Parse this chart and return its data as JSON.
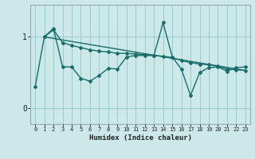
{
  "xlabel": "Humidex (Indice chaleur)",
  "bg_color": "#cce8e8",
  "line_color": "#1a6b6b",
  "grid_color": "#99cccc",
  "x_ticks": [
    0,
    1,
    2,
    3,
    4,
    5,
    6,
    7,
    8,
    9,
    10,
    11,
    12,
    13,
    14,
    15,
    16,
    17,
    18,
    19,
    20,
    21,
    22,
    23
  ],
  "y_ticks": [
    0,
    1
  ],
  "ylim": [
    -0.22,
    1.45
  ],
  "xlim": [
    -0.5,
    23.5
  ],
  "line1_x": [
    0,
    1,
    2,
    3,
    4,
    5,
    6,
    7,
    8,
    9,
    10,
    11,
    12,
    13,
    14,
    15,
    16,
    17,
    18,
    19,
    20,
    21,
    22,
    23
  ],
  "line1_y": [
    0.3,
    1.0,
    1.12,
    0.58,
    0.58,
    0.42,
    0.38,
    0.46,
    0.56,
    0.55,
    0.72,
    0.74,
    0.74,
    0.74,
    1.2,
    0.72,
    0.55,
    0.18,
    0.5,
    0.57,
    0.58,
    0.52,
    0.57,
    0.58
  ],
  "line2_x": [
    1,
    2,
    3,
    4,
    5,
    6,
    7,
    8,
    9,
    10,
    11,
    12,
    13,
    14,
    15,
    16,
    17,
    18,
    19,
    20,
    21,
    22,
    23
  ],
  "line2_y": [
    1.0,
    1.1,
    0.92,
    0.88,
    0.85,
    0.82,
    0.8,
    0.79,
    0.77,
    0.77,
    0.76,
    0.75,
    0.74,
    0.73,
    0.71,
    0.67,
    0.64,
    0.62,
    0.61,
    0.59,
    0.55,
    0.54,
    0.53
  ],
  "line3_x": [
    1,
    23
  ],
  "line3_y": [
    1.0,
    0.53
  ]
}
